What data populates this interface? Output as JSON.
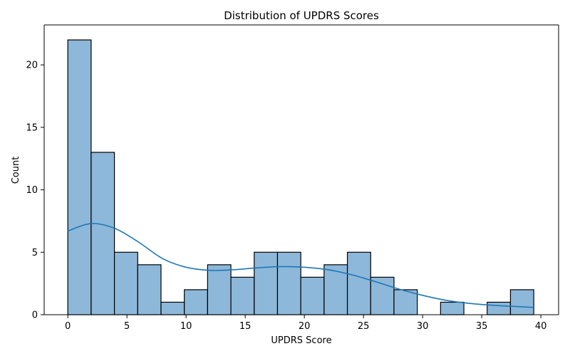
{
  "chart_data": {
    "type": "histogram",
    "title": "Distribution of UPDRS Scores",
    "xlabel": "UPDRS Score",
    "ylabel": "Count",
    "xlim": [
      -2,
      41.5
    ],
    "ylim": [
      0,
      23.2
    ],
    "x_ticks": [
      0,
      5,
      10,
      15,
      20,
      25,
      30,
      35,
      40
    ],
    "y_ticks": [
      0,
      5,
      10,
      15,
      20
    ],
    "bin_edges": [
      0,
      1.97,
      3.94,
      5.91,
      7.88,
      9.85,
      11.82,
      13.79,
      15.76,
      17.73,
      19.7,
      21.67,
      23.64,
      25.61,
      27.58,
      29.55,
      31.52,
      33.49,
      35.46,
      37.43,
      39.4
    ],
    "counts": [
      22,
      13,
      5,
      4,
      1,
      2,
      4,
      3,
      5,
      5,
      3,
      4,
      5,
      3,
      2,
      0,
      1,
      0,
      1,
      2
    ],
    "bar_color": "#8db8da",
    "kde": {
      "color": "#1f77b4",
      "x": [
        0,
        2,
        4,
        6,
        8,
        10,
        12,
        14,
        16,
        18,
        20,
        22,
        24,
        26,
        28,
        30,
        32,
        34,
        36,
        38,
        39.4
      ],
      "y": [
        6.7,
        7.3,
        6.9,
        5.8,
        4.5,
        3.8,
        3.55,
        3.6,
        3.75,
        3.85,
        3.8,
        3.6,
        3.2,
        2.65,
        2.05,
        1.55,
        1.15,
        0.9,
        0.75,
        0.65,
        0.58
      ]
    },
    "grid": false,
    "legend": false
  }
}
